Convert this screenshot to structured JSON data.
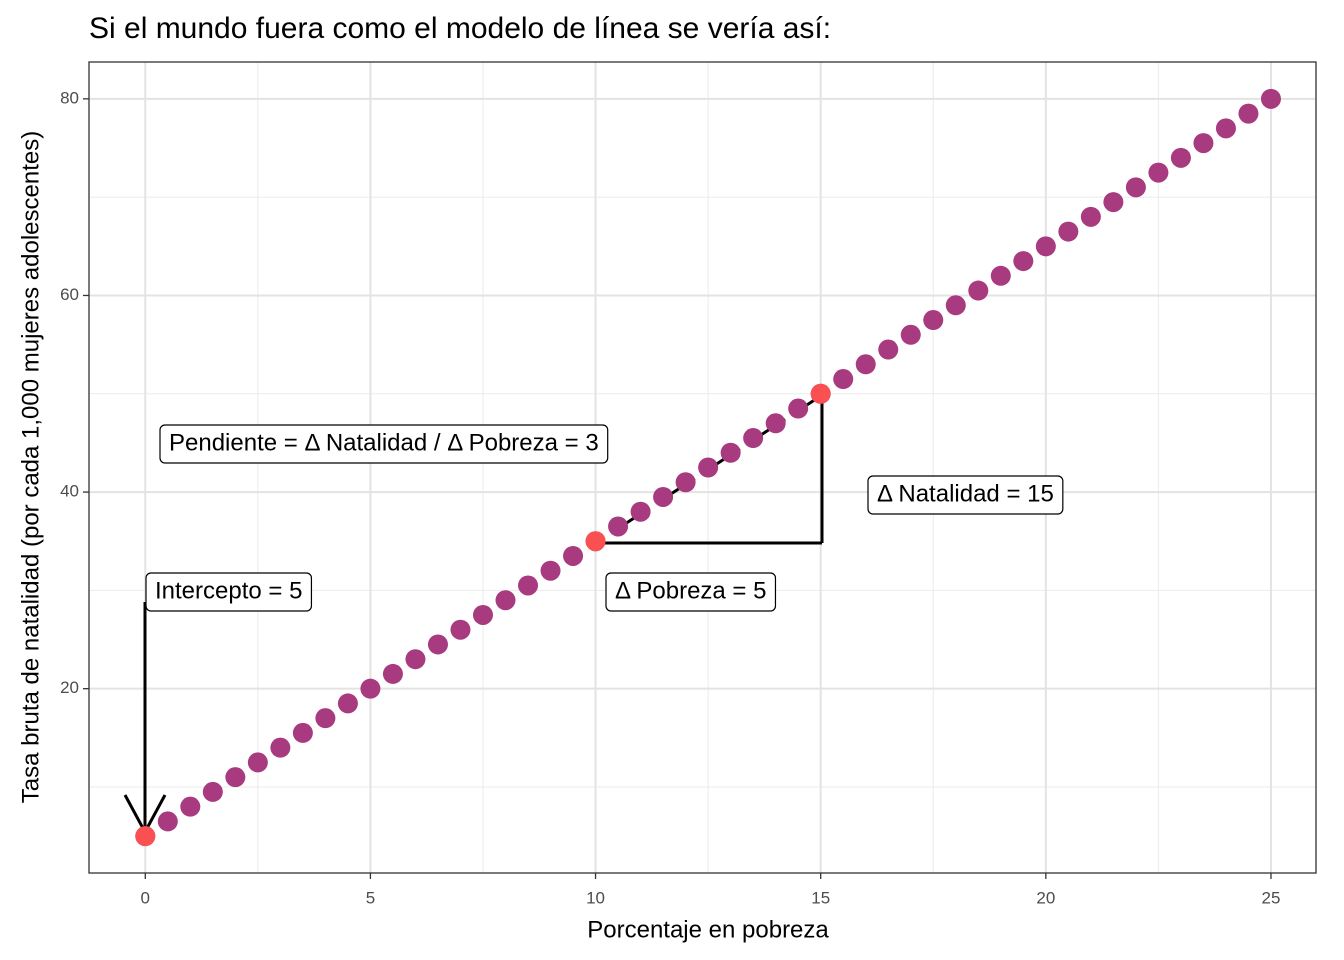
{
  "chart_data": {
    "type": "scatter",
    "title": "Si el mundo fuera como el modelo de línea se vería así:",
    "x_label": "Porcentaje en pobreza",
    "y_label": "Tasa bruta de natalidad (por cada 1,000 mujeres adolescentes)",
    "x": [
      0,
      0.5,
      1,
      1.5,
      2,
      2.5,
      3,
      3.5,
      4,
      4.5,
      5,
      5.5,
      6,
      6.5,
      7,
      7.5,
      8,
      8.5,
      9,
      9.5,
      10,
      10.5,
      11,
      11.5,
      12,
      12.5,
      13,
      13.5,
      14,
      14.5,
      15,
      15.5,
      16,
      16.5,
      17,
      17.5,
      18,
      18.5,
      19,
      19.5,
      20,
      20.5,
      21,
      21.5,
      22,
      22.5,
      23,
      23.5,
      24,
      24.5,
      25
    ],
    "values": [
      5,
      6.5,
      8,
      9.5,
      11,
      12.5,
      14,
      15.5,
      17,
      18.5,
      20,
      21.5,
      23,
      24.5,
      26,
      27.5,
      29,
      30.5,
      32,
      33.5,
      35,
      36.5,
      38,
      39.5,
      41,
      42.5,
      44,
      45.5,
      47,
      48.5,
      50,
      51.5,
      53,
      54.5,
      56,
      57.5,
      59,
      60.5,
      62,
      63.5,
      65,
      66.5,
      68,
      69.5,
      71,
      72.5,
      74,
      75.5,
      77,
      78.5,
      80
    ],
    "color": "#a83a80",
    "highlight": {
      "x": [
        0,
        10,
        15
      ],
      "values": [
        5,
        35,
        50
      ],
      "color": "#fb5052"
    },
    "annotations": [
      "Pendiente = Δ Natalidad / Δ Pobreza = 3",
      "Δ Natalidad = 15",
      "Intercepto = 5",
      "Δ Pobreza = 5"
    ],
    "xlim": [
      -1.25,
      26
    ],
    "ylim": [
      1.25,
      83.75
    ],
    "xticks": [
      0,
      5,
      10,
      15,
      20,
      25
    ],
    "yticks": [
      20,
      40,
      60,
      80
    ],
    "minor_xticks": [
      2.5,
      7.5,
      12.5,
      17.5,
      22.5
    ],
    "minor_yticks": [
      10,
      30,
      50,
      70
    ],
    "grid": true
  }
}
